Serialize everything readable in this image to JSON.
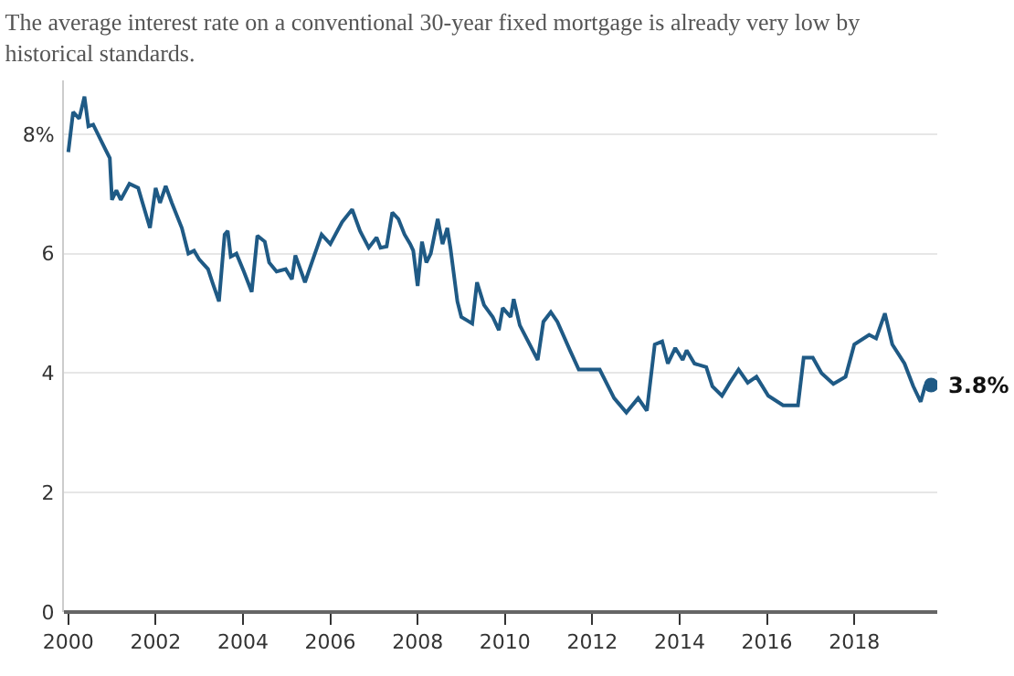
{
  "chart_data": {
    "type": "line",
    "title": "The average interest rate on a conventional 30-year fixed mortgage is already very low by\nhistorical standards.",
    "x": [
      2000.0,
      2000.11,
      2000.25,
      2000.37,
      2000.46,
      2000.57,
      2000.84,
      2000.95,
      2001.0,
      2001.1,
      2001.2,
      2001.4,
      2001.6,
      2001.7,
      2001.87,
      2002.0,
      2002.1,
      2002.23,
      2002.37,
      2002.6,
      2002.75,
      2002.88,
      2003.0,
      2003.2,
      2003.3,
      2003.45,
      2003.58,
      2003.65,
      2003.72,
      2003.85,
      2004.02,
      2004.2,
      2004.33,
      2004.5,
      2004.6,
      2004.77,
      2004.98,
      2005.12,
      2005.2,
      2005.42,
      2005.6,
      2005.8,
      2006.0,
      2006.27,
      2006.5,
      2006.68,
      2006.88,
      2007.06,
      2007.15,
      2007.29,
      2007.42,
      2007.56,
      2007.7,
      2007.83,
      2007.9,
      2008.0,
      2008.1,
      2008.2,
      2008.3,
      2008.46,
      2008.57,
      2008.68,
      2008.75,
      2008.91,
      2009.0,
      2009.25,
      2009.36,
      2009.52,
      2009.72,
      2009.86,
      2009.95,
      2010.13,
      2010.2,
      2010.34,
      2010.75,
      2010.88,
      2011.05,
      2011.2,
      2011.49,
      2011.69,
      2012.17,
      2012.5,
      2012.78,
      2013.05,
      2013.25,
      2013.43,
      2013.6,
      2013.73,
      2013.9,
      2014.07,
      2014.16,
      2014.34,
      2014.61,
      2014.75,
      2014.97,
      2015.15,
      2015.35,
      2015.56,
      2015.76,
      2016.03,
      2016.37,
      2016.71,
      2016.84,
      2017.05,
      2017.25,
      2017.52,
      2017.8,
      2018.0,
      2018.34,
      2018.5,
      2018.7,
      2018.87,
      2019.15,
      2019.35,
      2019.52,
      2019.62,
      2019.76
    ],
    "series": [
      {
        "color": "#1f5a85",
        "values": [
          7.7,
          8.37,
          8.26,
          8.63,
          8.13,
          8.16,
          7.76,
          7.6,
          6.9,
          7.06,
          6.9,
          7.17,
          7.1,
          6.85,
          6.43,
          7.1,
          6.85,
          7.13,
          6.85,
          6.43,
          6.0,
          6.05,
          5.9,
          5.74,
          5.52,
          5.2,
          6.32,
          6.38,
          5.95,
          6.0,
          5.7,
          5.36,
          6.3,
          6.2,
          5.85,
          5.7,
          5.74,
          5.57,
          5.97,
          5.52,
          5.9,
          6.32,
          6.16,
          6.53,
          6.74,
          6.38,
          6.1,
          6.27,
          6.1,
          6.12,
          6.69,
          6.58,
          6.32,
          6.16,
          6.05,
          5.46,
          6.2,
          5.85,
          6.0,
          6.58,
          6.16,
          6.43,
          6.1,
          5.2,
          4.94,
          4.83,
          5.52,
          5.14,
          4.94,
          4.72,
          5.09,
          4.94,
          5.24,
          4.8,
          4.22,
          4.86,
          5.02,
          4.86,
          4.38,
          4.06,
          4.06,
          3.58,
          3.34,
          3.58,
          3.37,
          4.48,
          4.53,
          4.16,
          4.42,
          4.22,
          4.38,
          4.16,
          4.1,
          3.78,
          3.62,
          3.84,
          4.06,
          3.84,
          3.94,
          3.62,
          3.46,
          3.46,
          4.26,
          4.26,
          4.0,
          3.82,
          3.94,
          4.48,
          4.64,
          4.58,
          5.0,
          4.48,
          4.16,
          3.78,
          3.52,
          3.78,
          3.8
        ]
      }
    ],
    "xlim": [
      1999.9,
      2019.9
    ],
    "xticks": [
      2000,
      2002,
      2004,
      2006,
      2008,
      2010,
      2012,
      2014,
      2016,
      2018
    ],
    "ylim": [
      0,
      8.9
    ],
    "yticks": [
      0,
      2,
      4,
      6,
      {
        "value": 8,
        "label": "8%"
      }
    ],
    "grid": "y",
    "marker": "none",
    "line_style": "solid",
    "annotations": [
      {
        "text": "3.8%",
        "x": 2019.76,
        "y": 3.8
      }
    ]
  }
}
